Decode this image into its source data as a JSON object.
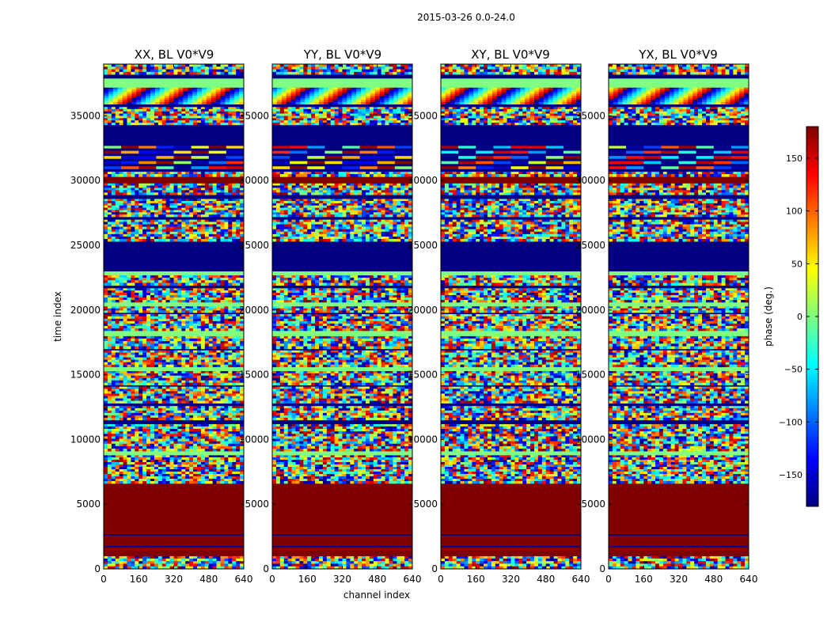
{
  "chart_data": {
    "type": "heatmap",
    "suptitle": "2015-03-26 0.0-24.0",
    "xlabel": "channel index",
    "ylabel": "time index",
    "xlim": [
      0,
      640
    ],
    "ylim": [
      0,
      39000
    ],
    "xticks": [
      0,
      160,
      320,
      480,
      640
    ],
    "yticks": [
      0,
      5000,
      10000,
      15000,
      20000,
      25000,
      30000,
      35000
    ],
    "panels": [
      {
        "title": "XX, BL V0*V9"
      },
      {
        "title": "YY, BL V0*V9"
      },
      {
        "title": "XY, BL V0*V9"
      },
      {
        "title": "YX, BL V0*V9"
      }
    ],
    "colorbar": {
      "label": "phase (deg.)",
      "range": [
        -180,
        180
      ],
      "ticks": [
        -150,
        -100,
        -50,
        0,
        50,
        100,
        150
      ],
      "tick_labels": [
        "−150",
        "−100",
        "−50",
        "0",
        "50",
        "100",
        "150"
      ],
      "colormap": "jet"
    },
    "bands": [
      {
        "from": 0,
        "to": 1000,
        "kind": "noise"
      },
      {
        "from": 1000,
        "to": 1700,
        "kind": "red"
      },
      {
        "from": 1700,
        "to": 1800,
        "kind": "blue"
      },
      {
        "from": 1800,
        "to": 2600,
        "kind": "red"
      },
      {
        "from": 2600,
        "to": 2700,
        "kind": "blue"
      },
      {
        "from": 2700,
        "to": 6600,
        "kind": "red"
      },
      {
        "from": 6600,
        "to": 8800,
        "kind": "noise"
      },
      {
        "from": 8800,
        "to": 9100,
        "kind": "green"
      },
      {
        "from": 9100,
        "to": 11200,
        "kind": "noise"
      },
      {
        "from": 11200,
        "to": 11500,
        "kind": "blue"
      },
      {
        "from": 11500,
        "to": 12600,
        "kind": "noise"
      },
      {
        "from": 12600,
        "to": 12800,
        "kind": "blue"
      },
      {
        "from": 12800,
        "to": 14100,
        "kind": "noise"
      },
      {
        "from": 14100,
        "to": 14200,
        "kind": "blue"
      },
      {
        "from": 14200,
        "to": 15300,
        "kind": "noise"
      },
      {
        "from": 15300,
        "to": 15600,
        "kind": "green"
      },
      {
        "from": 15600,
        "to": 16900,
        "kind": "noise"
      },
      {
        "from": 16900,
        "to": 17000,
        "kind": "blue"
      },
      {
        "from": 17000,
        "to": 18000,
        "kind": "noise"
      },
      {
        "from": 18000,
        "to": 18400,
        "kind": "green"
      },
      {
        "from": 18400,
        "to": 19700,
        "kind": "noise"
      },
      {
        "from": 19700,
        "to": 19800,
        "kind": "blue"
      },
      {
        "from": 19800,
        "to": 20300,
        "kind": "noise"
      },
      {
        "from": 20300,
        "to": 20600,
        "kind": "green"
      },
      {
        "from": 20600,
        "to": 21700,
        "kind": "noise"
      },
      {
        "from": 21700,
        "to": 21900,
        "kind": "blue"
      },
      {
        "from": 21900,
        "to": 22700,
        "kind": "noise"
      },
      {
        "from": 22700,
        "to": 23000,
        "kind": "green"
      },
      {
        "from": 23000,
        "to": 25300,
        "kind": "blue"
      },
      {
        "from": 25300,
        "to": 27000,
        "kind": "noise"
      },
      {
        "from": 27000,
        "to": 27200,
        "kind": "blue"
      },
      {
        "from": 27200,
        "to": 28600,
        "kind": "noise"
      },
      {
        "from": 28600,
        "to": 28900,
        "kind": "blue"
      },
      {
        "from": 28900,
        "to": 29800,
        "kind": "noise"
      },
      {
        "from": 29800,
        "to": 30300,
        "kind": "red"
      },
      {
        "from": 30300,
        "to": 30700,
        "kind": "noise"
      },
      {
        "from": 30700,
        "to": 32700,
        "kind": "stripes"
      },
      {
        "from": 32700,
        "to": 34300,
        "kind": "blue"
      },
      {
        "from": 34300,
        "to": 35700,
        "kind": "noise"
      },
      {
        "from": 35700,
        "to": 35900,
        "kind": "blue"
      },
      {
        "from": 35900,
        "to": 37200,
        "kind": "fringe"
      },
      {
        "from": 37200,
        "to": 37900,
        "kind": "green"
      },
      {
        "from": 37900,
        "to": 38200,
        "kind": "blue"
      },
      {
        "from": 38200,
        "to": 39000,
        "kind": "noise"
      }
    ]
  }
}
